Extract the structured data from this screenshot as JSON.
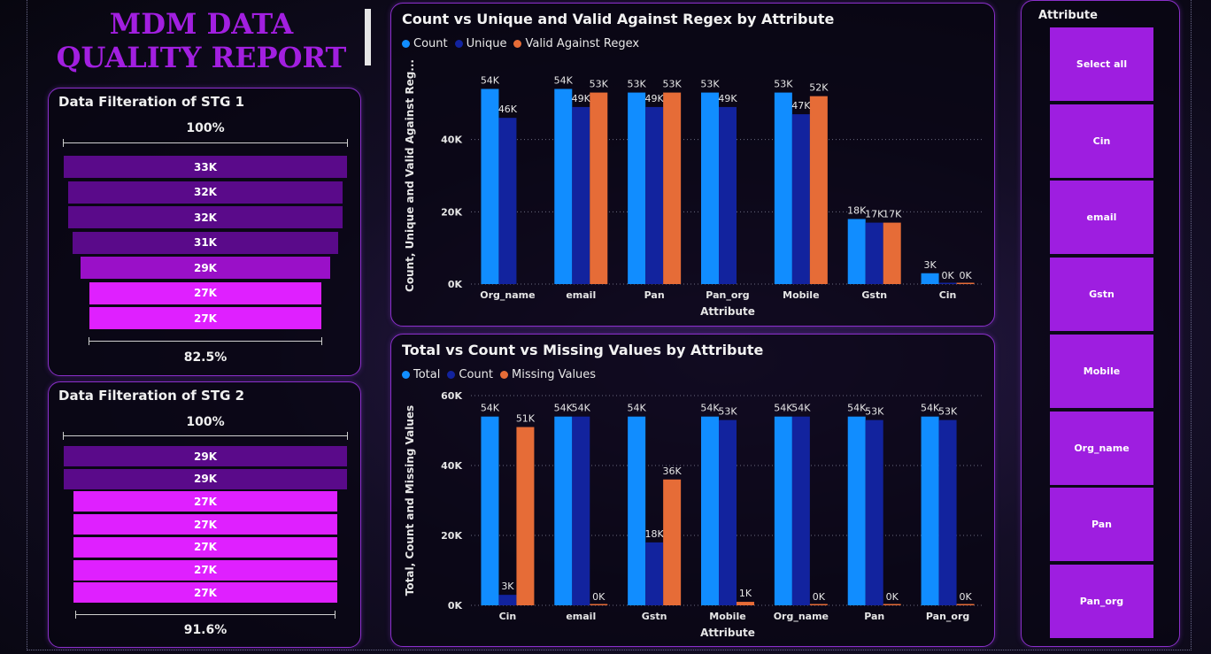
{
  "report_title": "MDM DATA QUALITY REPORT",
  "colors": {
    "accent": "#a21fe0",
    "series_blue": "#118dff",
    "series_navy": "#12239e",
    "series_orange": "#e66c37",
    "funnel_dark": "#5a0a8a",
    "funnel_mid": "#9a10c8",
    "funnel_bright": "#df20ff"
  },
  "stg1": {
    "title": "Data Filteration of STG 1",
    "top_pct": "100%",
    "bottom_pct": "82.5%",
    "bars": [
      {
        "label": "33K",
        "value": 33
      },
      {
        "label": "32K",
        "value": 32
      },
      {
        "label": "32K",
        "value": 32
      },
      {
        "label": "31K",
        "value": 31
      },
      {
        "label": "29K",
        "value": 29
      },
      {
        "label": "27K",
        "value": 27
      },
      {
        "label": "27K",
        "value": 27
      }
    ]
  },
  "stg2": {
    "title": "Data Filteration of STG 2",
    "top_pct": "100%",
    "bottom_pct": "91.6%",
    "bars": [
      {
        "label": "29K",
        "value": 29
      },
      {
        "label": "29K",
        "value": 29
      },
      {
        "label": "27K",
        "value": 27
      },
      {
        "label": "27K",
        "value": 27
      },
      {
        "label": "27K",
        "value": 27
      },
      {
        "label": "27K",
        "value": 27
      },
      {
        "label": "27K",
        "value": 27
      }
    ]
  },
  "slicer": {
    "title": "Attribute",
    "items": [
      "Select all",
      "Cin",
      "email",
      "Gstn",
      "Mobile",
      "Org_name",
      "Pan",
      "Pan_org"
    ]
  },
  "chart_data": [
    {
      "type": "bar",
      "title": "Count vs Unique and Valid Against Regex by Attribute",
      "xlabel": "Attribute",
      "ylabel": "Count, Unique and Valid Against Reg...",
      "ylim": [
        0,
        60000
      ],
      "yticks": [
        0,
        20000,
        40000
      ],
      "ytick_labels": [
        "0K",
        "20K",
        "40K"
      ],
      "grid": true,
      "legend": "top-left",
      "categories": [
        "Org_name",
        "email",
        "Pan",
        "Pan_org",
        "Mobile",
        "Gstn",
        "Cin"
      ],
      "series": [
        {
          "name": "Count",
          "values": [
            54000,
            54000,
            53000,
            53000,
            53000,
            18000,
            3000
          ],
          "labels": [
            "54K",
            "54K",
            "53K",
            "53K",
            "53K",
            "18K",
            "3K"
          ]
        },
        {
          "name": "Unique",
          "values": [
            46000,
            49000,
            49000,
            49000,
            47000,
            17000,
            0
          ],
          "labels": [
            "46K",
            "49K",
            "49K",
            "49K",
            "47K",
            "17K",
            "0K"
          ]
        },
        {
          "name": "Valid Against Regex",
          "values": [
            null,
            53000,
            53000,
            null,
            52000,
            17000,
            0
          ],
          "labels": [
            "",
            "53K",
            "53K",
            "",
            "52K",
            "17K",
            "0K"
          ]
        }
      ]
    },
    {
      "type": "bar",
      "title": "Total vs Count vs Missing Values by Attribute",
      "xlabel": "Attribute",
      "ylabel": "Total, Count and Missing Values",
      "ylim": [
        0,
        60000
      ],
      "yticks": [
        0,
        20000,
        40000,
        60000
      ],
      "ytick_labels": [
        "0K",
        "20K",
        "40K",
        "60K"
      ],
      "grid": true,
      "legend": "top-left",
      "categories": [
        "Cin",
        "email",
        "Gstn",
        "Mobile",
        "Org_name",
        "Pan",
        "Pan_org"
      ],
      "series": [
        {
          "name": "Total",
          "values": [
            54000,
            54000,
            54000,
            54000,
            54000,
            54000,
            54000
          ],
          "labels": [
            "54K",
            "54K",
            "54K",
            "54K",
            "54K",
            "54K",
            "54K"
          ]
        },
        {
          "name": "Count",
          "values": [
            3000,
            54000,
            18000,
            53000,
            54000,
            53000,
            53000
          ],
          "labels": [
            "3K",
            "54K",
            "18K",
            "53K",
            "54K",
            "53K",
            "53K"
          ]
        },
        {
          "name": "Missing Values",
          "values": [
            51000,
            0,
            36000,
            1000,
            0,
            0,
            0
          ],
          "labels": [
            "51K",
            "0K",
            "36K",
            "1K",
            "0K",
            "0K",
            "0K"
          ]
        }
      ]
    }
  ]
}
